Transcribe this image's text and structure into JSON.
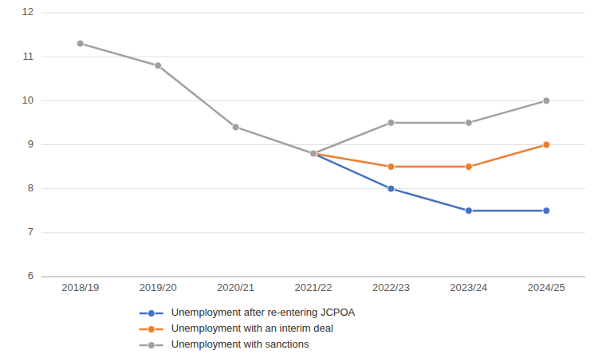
{
  "chart_data": {
    "type": "line",
    "categories": [
      "2018/19",
      "2019/20",
      "2020/21",
      "2021/22",
      "2022/23",
      "2023/24",
      "2024/25"
    ],
    "series": [
      {
        "name": "Unemployment after re-entering JCPOA",
        "color": "#4472C4",
        "marker": "circle",
        "values": [
          null,
          null,
          null,
          8.8,
          8.0,
          7.5,
          7.5
        ]
      },
      {
        "name": "Unemployment with an interim deal",
        "color": "#ED7D31",
        "marker": "circle",
        "values": [
          null,
          null,
          null,
          8.8,
          8.5,
          8.5,
          9.0
        ]
      },
      {
        "name": "Unemployment with sanctions",
        "color": "#A0A0A0",
        "marker": "circle",
        "values": [
          11.3,
          10.8,
          9.4,
          8.8,
          9.5,
          9.5,
          10.0
        ]
      }
    ],
    "ylim": [
      6,
      12
    ],
    "yticks": [
      6,
      7,
      8,
      9,
      10,
      11,
      12
    ],
    "grid": true,
    "legend": "bottom"
  }
}
